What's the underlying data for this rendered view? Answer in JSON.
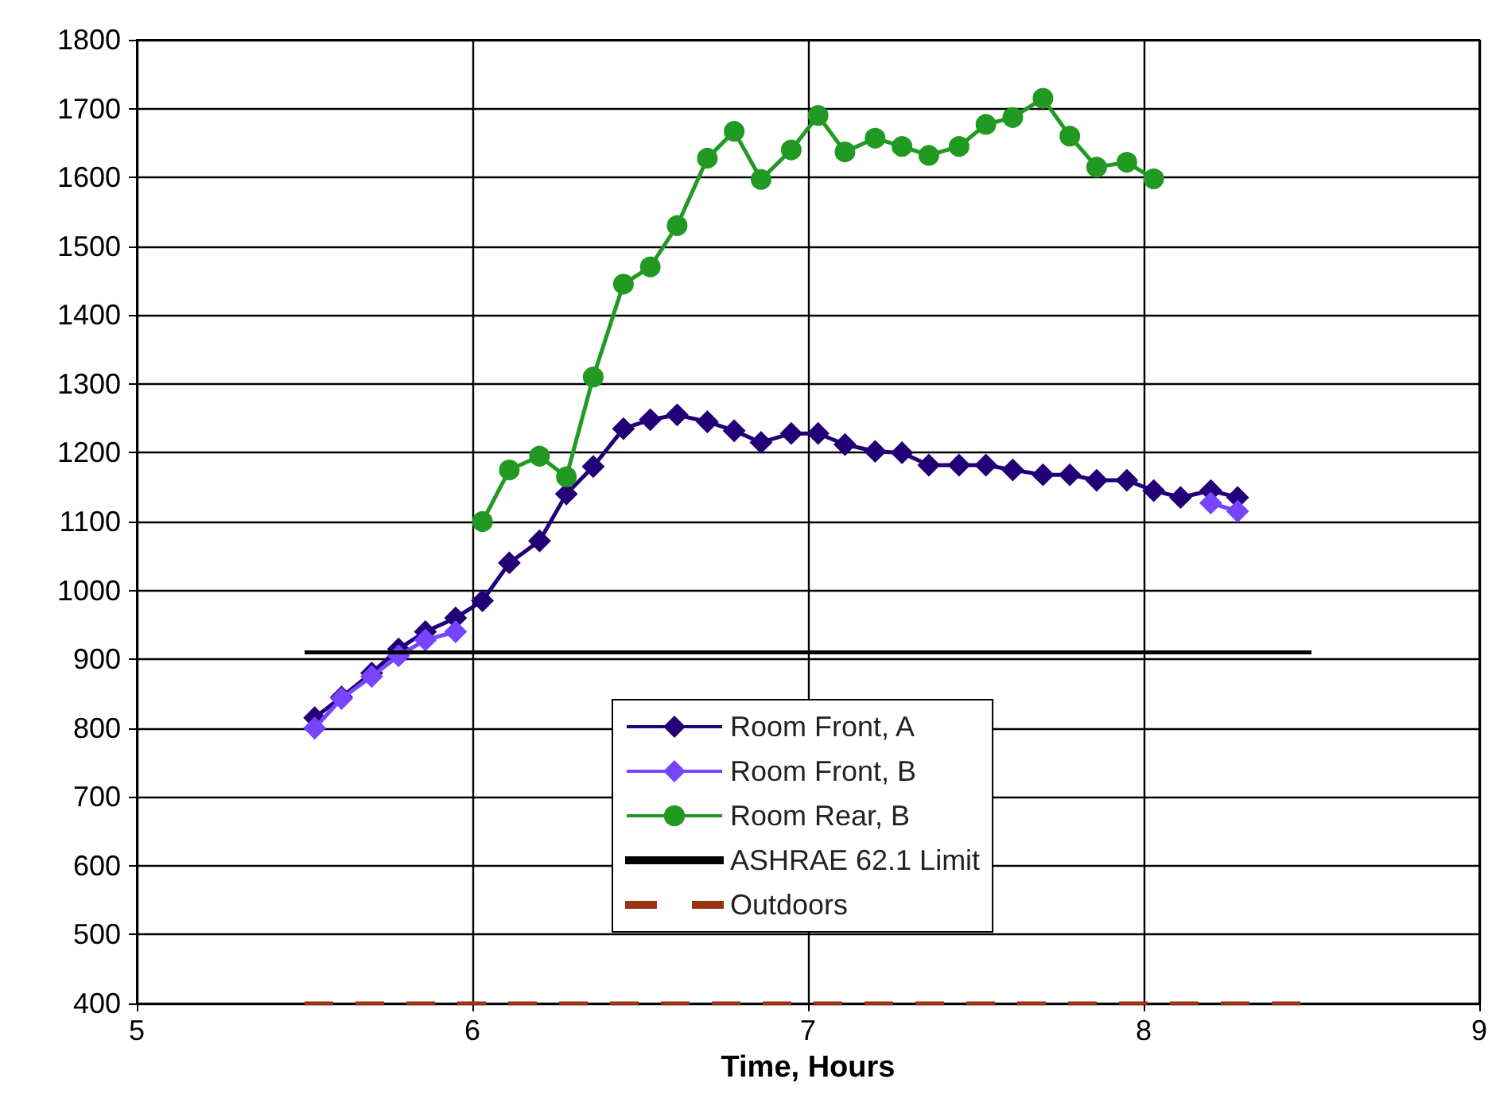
{
  "chart_data": {
    "type": "line",
    "xlabel": "Time, Hours",
    "xlim": [
      5,
      9
    ],
    "xticks": [
      5,
      6,
      7,
      8,
      9
    ],
    "ylim": [
      400,
      1800
    ],
    "yticks": [
      400,
      500,
      600,
      700,
      800,
      900,
      1000,
      1100,
      1200,
      1300,
      1400,
      1500,
      1600,
      1700,
      1800
    ],
    "grid": true,
    "legend": "bottom",
    "line_style": "solid",
    "series": [
      {
        "name": "Room Front, A",
        "color": "#220077",
        "marker": "diamond",
        "x": [
          5.53,
          5.61,
          5.7,
          5.78,
          5.86,
          5.95,
          6.03,
          6.11,
          6.2,
          6.28,
          6.36,
          6.45,
          6.53,
          6.61,
          6.7,
          6.78,
          6.86,
          6.95,
          7.03,
          7.11,
          7.2,
          7.28,
          7.36,
          7.45,
          7.53,
          7.61,
          7.7,
          7.78,
          7.86,
          7.95,
          8.03,
          8.11,
          8.2,
          8.28
        ],
        "values": [
          815,
          845,
          880,
          915,
          940,
          960,
          985,
          1040,
          1072,
          1140,
          1180,
          1235,
          1248,
          1255,
          1245,
          1232,
          1215,
          1228,
          1228,
          1212,
          1202,
          1200,
          1182,
          1182,
          1182,
          1175,
          1168,
          1168,
          1160,
          1160,
          1145,
          1135,
          1145,
          1135
        ]
      },
      {
        "name": "Room Front, B",
        "color": "#7744ff",
        "marker": "diamond",
        "x": [
          5.53,
          5.61,
          5.7,
          5.78,
          5.86,
          5.95,
          7.0,
          8.2,
          8.28
        ],
        "values": [
          800,
          843,
          875,
          905,
          928,
          940,
          null,
          1127,
          1115
        ]
      },
      {
        "name": "Room Rear, B",
        "color": "#229922",
        "marker": "circle",
        "x": [
          6.03,
          6.11,
          6.2,
          6.28,
          6.36,
          6.45,
          6.53,
          6.61,
          6.7,
          6.78,
          6.86,
          6.95,
          7.03,
          7.11,
          7.2,
          7.28,
          7.36,
          7.45,
          7.53,
          7.61,
          7.7,
          7.78,
          7.86,
          7.95,
          8.03
        ],
        "values": [
          1100,
          1175,
          1195,
          1165,
          1310,
          1445,
          1470,
          1530,
          1628,
          1667,
          1597,
          1640,
          1690,
          1637,
          1657,
          1645,
          1632,
          1645,
          1677,
          1687,
          1715,
          1660,
          1615,
          1622,
          1598
        ]
      },
      {
        "name": "ASHRAE 62.1 Limit",
        "color": "#000000",
        "marker": "none",
        "x": [
          5.5,
          8.5
        ],
        "values": [
          910,
          910
        ]
      },
      {
        "name": "Outdoors",
        "color": "#993311",
        "marker": "none",
        "line_style": "dashed",
        "x": [
          5.5,
          8.5
        ],
        "values": [
          400,
          400
        ]
      }
    ]
  }
}
